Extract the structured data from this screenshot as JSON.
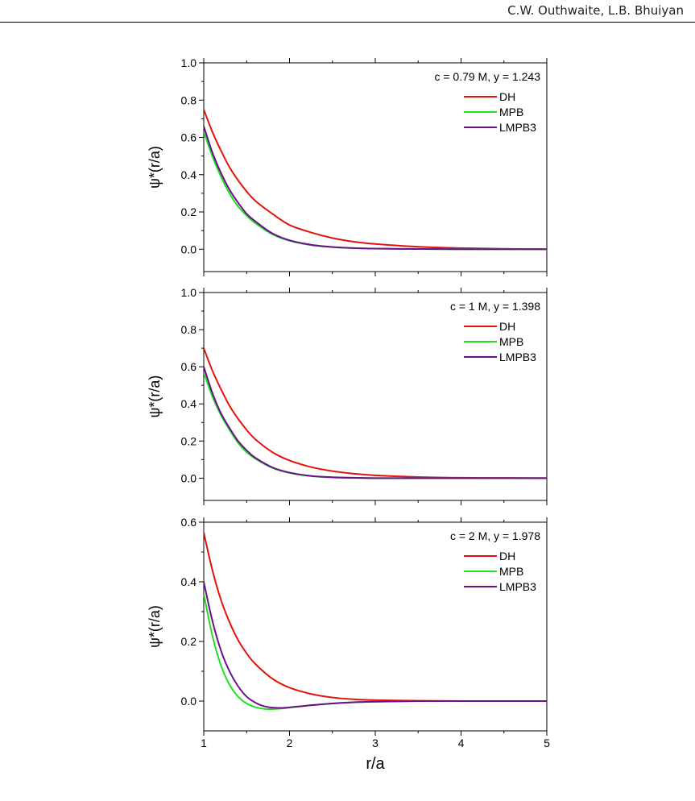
{
  "header": {
    "authors": "C.W. Outhwaite, L.B. Bhuiyan"
  },
  "chart_data": [
    {
      "type": "line",
      "annotation": "c = 0.79 M, y = 1.243",
      "xlabel": "",
      "ylabel": "ψ*(r/a)",
      "xlim": [
        1,
        5
      ],
      "ylim": [
        -0.12,
        1.0
      ],
      "yticks": [
        0.0,
        0.2,
        0.4,
        0.6,
        0.8,
        1.0
      ],
      "ytick_labels": [
        "0.0",
        "0.2",
        "0.4",
        "0.6",
        "0.8",
        "1.0"
      ],
      "legend_position": "top-right",
      "series": [
        {
          "name": "DH",
          "color": "#e3120b",
          "x": [
            1.0,
            1.1,
            1.2,
            1.3,
            1.4,
            1.5,
            1.6,
            1.8,
            2.0,
            2.25,
            2.5,
            2.75,
            3.0,
            3.5,
            4.0,
            4.5,
            5.0
          ],
          "y": [
            0.75,
            0.63,
            0.53,
            0.44,
            0.37,
            0.31,
            0.26,
            0.19,
            0.13,
            0.09,
            0.06,
            0.04,
            0.028,
            0.013,
            0.006,
            0.002,
            0.0
          ]
        },
        {
          "name": "MPB",
          "color": "#22dd22",
          "x": [
            1.0,
            1.1,
            1.2,
            1.3,
            1.4,
            1.5,
            1.6,
            1.8,
            2.0,
            2.25,
            2.5,
            2.75,
            3.0,
            3.5,
            4.0,
            4.5,
            5.0
          ],
          "y": [
            0.63,
            0.5,
            0.39,
            0.3,
            0.23,
            0.18,
            0.14,
            0.08,
            0.045,
            0.022,
            0.011,
            0.006,
            0.003,
            0.001,
            0.0,
            0.0,
            0.0
          ]
        },
        {
          "name": "LMPB3",
          "color": "#6a0f8e",
          "x": [
            1.0,
            1.1,
            1.2,
            1.3,
            1.4,
            1.5,
            1.6,
            1.8,
            2.0,
            2.25,
            2.5,
            2.75,
            3.0,
            3.5,
            4.0,
            4.5,
            5.0
          ],
          "y": [
            0.66,
            0.52,
            0.41,
            0.32,
            0.25,
            0.19,
            0.15,
            0.085,
            0.048,
            0.024,
            0.012,
            0.006,
            0.003,
            0.001,
            0.0,
            0.0,
            0.0
          ]
        }
      ]
    },
    {
      "type": "line",
      "annotation": "c = 1 M, y = 1.398",
      "xlabel": "",
      "ylabel": "ψ*(r/a)",
      "xlim": [
        1,
        5
      ],
      "ylim": [
        -0.12,
        1.0
      ],
      "yticks": [
        0.0,
        0.2,
        0.4,
        0.6,
        0.8,
        1.0
      ],
      "ytick_labels": [
        "0.0",
        "0.2",
        "0.4",
        "0.6",
        "0.8",
        "1.0"
      ],
      "legend_position": "top-right",
      "series": [
        {
          "name": "DH",
          "color": "#e3120b",
          "x": [
            1.0,
            1.1,
            1.2,
            1.3,
            1.4,
            1.5,
            1.6,
            1.8,
            2.0,
            2.25,
            2.5,
            2.75,
            3.0,
            3.5,
            4.0,
            4.5,
            5.0
          ],
          "y": [
            0.7,
            0.58,
            0.48,
            0.39,
            0.32,
            0.26,
            0.21,
            0.14,
            0.095,
            0.06,
            0.038,
            0.024,
            0.015,
            0.006,
            0.002,
            0.001,
            0.0
          ]
        },
        {
          "name": "MPB",
          "color": "#22dd22",
          "x": [
            1.0,
            1.1,
            1.2,
            1.3,
            1.4,
            1.5,
            1.6,
            1.8,
            2.0,
            2.25,
            2.5,
            2.75,
            3.0,
            3.5,
            4.0,
            4.5,
            5.0
          ],
          "y": [
            0.57,
            0.44,
            0.34,
            0.26,
            0.19,
            0.14,
            0.105,
            0.055,
            0.028,
            0.011,
            0.004,
            0.001,
            0.0,
            0.0,
            0.0,
            0.0,
            0.0
          ]
        },
        {
          "name": "LMPB3",
          "color": "#6a0f8e",
          "x": [
            1.0,
            1.1,
            1.2,
            1.3,
            1.4,
            1.5,
            1.6,
            1.8,
            2.0,
            2.25,
            2.5,
            2.75,
            3.0,
            3.5,
            4.0,
            4.5,
            5.0
          ],
          "y": [
            0.6,
            0.46,
            0.35,
            0.27,
            0.2,
            0.15,
            0.11,
            0.058,
            0.03,
            0.012,
            0.005,
            0.002,
            0.0,
            0.0,
            0.0,
            0.0,
            0.0
          ]
        }
      ]
    },
    {
      "type": "line",
      "annotation": "c = 2 M, y = 1.978",
      "xlabel": "r/a",
      "ylabel": "ψ*(r/a)",
      "xlim": [
        1,
        5
      ],
      "ylim": [
        -0.1,
        0.6
      ],
      "xticks": [
        1,
        2,
        3,
        4,
        5
      ],
      "xtick_labels": [
        "1",
        "2",
        "3",
        "4",
        "5"
      ],
      "yticks": [
        0.0,
        0.2,
        0.4,
        0.6
      ],
      "ytick_labels": [
        "0.0",
        "0.2",
        "0.4",
        "0.6"
      ],
      "legend_position": "top-right",
      "series": [
        {
          "name": "DH",
          "color": "#e3120b",
          "x": [
            1.0,
            1.1,
            1.2,
            1.3,
            1.4,
            1.5,
            1.6,
            1.8,
            2.0,
            2.25,
            2.5,
            2.75,
            3.0,
            3.5,
            4.0,
            4.5,
            5.0
          ],
          "y": [
            0.565,
            0.44,
            0.34,
            0.265,
            0.205,
            0.16,
            0.125,
            0.075,
            0.045,
            0.024,
            0.012,
            0.006,
            0.003,
            0.001,
            0.0,
            0.0,
            0.0
          ]
        },
        {
          "name": "MPB",
          "color": "#22dd22",
          "x": [
            1.0,
            1.1,
            1.2,
            1.3,
            1.4,
            1.5,
            1.6,
            1.7,
            1.8,
            1.9,
            2.0,
            2.25,
            2.5,
            2.75,
            3.0,
            3.5,
            4.0,
            4.5,
            5.0
          ],
          "y": [
            0.36,
            0.22,
            0.12,
            0.055,
            0.015,
            -0.008,
            -0.02,
            -0.026,
            -0.027,
            -0.025,
            -0.022,
            -0.014,
            -0.008,
            -0.004,
            -0.002,
            0.0,
            0.0,
            0.0,
            0.0
          ]
        },
        {
          "name": "LMPB3",
          "color": "#6a0f8e",
          "x": [
            1.0,
            1.1,
            1.2,
            1.3,
            1.4,
            1.5,
            1.6,
            1.7,
            1.8,
            1.9,
            2.0,
            2.25,
            2.5,
            2.75,
            3.0,
            3.5,
            4.0,
            4.5,
            5.0
          ],
          "y": [
            0.4,
            0.27,
            0.17,
            0.1,
            0.05,
            0.015,
            -0.005,
            -0.017,
            -0.022,
            -0.023,
            -0.021,
            -0.014,
            -0.008,
            -0.004,
            -0.002,
            0.0,
            0.0,
            0.0,
            0.0
          ]
        }
      ]
    }
  ]
}
